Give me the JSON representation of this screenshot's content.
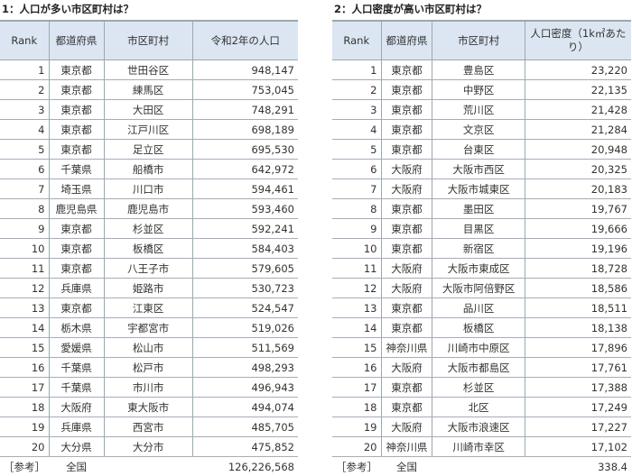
{
  "left": {
    "title": "1：人口が多い市区町村は？",
    "headers": [
      "Rank",
      "都道府県",
      "市区町村",
      "令和2年の人口"
    ],
    "rows": [
      [
        "1",
        "東京都",
        "世田谷区",
        "948,147"
      ],
      [
        "2",
        "東京都",
        "練馬区",
        "753,045"
      ],
      [
        "3",
        "東京都",
        "大田区",
        "748,291"
      ],
      [
        "4",
        "東京都",
        "江戸川区",
        "698,189"
      ],
      [
        "5",
        "東京都",
        "足立区",
        "695,530"
      ],
      [
        "6",
        "千葉県",
        "船橋市",
        "642,972"
      ],
      [
        "7",
        "埼玉県",
        "川口市",
        "594,461"
      ],
      [
        "8",
        "鹿児島県",
        "鹿児島市",
        "593,460"
      ],
      [
        "9",
        "東京都",
        "杉並区",
        "592,241"
      ],
      [
        "10",
        "東京都",
        "板橋区",
        "584,403"
      ],
      [
        "11",
        "東京都",
        "八王子市",
        "579,605"
      ],
      [
        "12",
        "兵庫県",
        "姫路市",
        "530,723"
      ],
      [
        "13",
        "東京都",
        "江東区",
        "524,547"
      ],
      [
        "14",
        "栃木県",
        "宇都宮市",
        "519,026"
      ],
      [
        "15",
        "愛媛県",
        "松山市",
        "511,569"
      ],
      [
        "16",
        "千葉県",
        "松戸市",
        "498,293"
      ],
      [
        "17",
        "千葉県",
        "市川市",
        "496,943"
      ],
      [
        "18",
        "大阪府",
        "東大阪市",
        "494,074"
      ],
      [
        "19",
        "兵庫県",
        "西宮市",
        "485,705"
      ],
      [
        "20",
        "大分県",
        "大分市",
        "475,852"
      ]
    ],
    "footer": [
      "［参考］",
      "全国",
      "126,226,568"
    ]
  },
  "right": {
    "title": "2：人口密度が高い市区町村は？",
    "headers": [
      "Rank",
      "都道府県",
      "市区町村",
      "人口密度（1k㎡あたり）"
    ],
    "rows": [
      [
        "1",
        "東京都",
        "豊島区",
        "23,220"
      ],
      [
        "2",
        "東京都",
        "中野区",
        "22,135"
      ],
      [
        "3",
        "東京都",
        "荒川区",
        "21,428"
      ],
      [
        "4",
        "東京都",
        "文京区",
        "21,284"
      ],
      [
        "5",
        "東京都",
        "台東区",
        "20,948"
      ],
      [
        "6",
        "大阪府",
        "大阪市西区",
        "20,325"
      ],
      [
        "7",
        "大阪府",
        "大阪市城東区",
        "20,183"
      ],
      [
        "8",
        "東京都",
        "墨田区",
        "19,767"
      ],
      [
        "9",
        "東京都",
        "目黒区",
        "19,666"
      ],
      [
        "10",
        "東京都",
        "新宿区",
        "19,196"
      ],
      [
        "11",
        "大阪府",
        "大阪市東成区",
        "18,728"
      ],
      [
        "12",
        "大阪府",
        "大阪市阿倍野区",
        "18,586"
      ],
      [
        "13",
        "東京都",
        "品川区",
        "18,511"
      ],
      [
        "14",
        "東京都",
        "板橋区",
        "18,138"
      ],
      [
        "15",
        "神奈川県",
        "川崎市中原区",
        "17,896"
      ],
      [
        "16",
        "大阪府",
        "大阪市都島区",
        "17,761"
      ],
      [
        "17",
        "東京都",
        "杉並区",
        "17,388"
      ],
      [
        "18",
        "東京都",
        "北区",
        "17,249"
      ],
      [
        "19",
        "大阪府",
        "大阪市浪速区",
        "17,227"
      ],
      [
        "20",
        "神奈川県",
        "川崎市幸区",
        "17,102"
      ]
    ],
    "footer": [
      "［参考］",
      "全国",
      "338.4"
    ]
  }
}
